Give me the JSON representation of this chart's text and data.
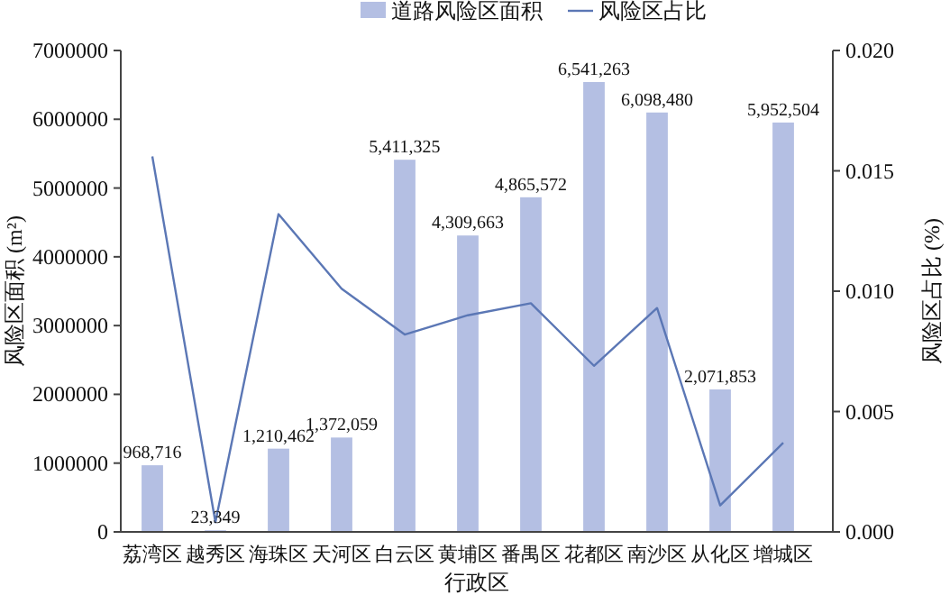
{
  "chart_data": {
    "type": "bar",
    "xlabel": "行政区",
    "ylabel": "风险区面积 (m²)",
    "y2label": "风险区占比 (%)",
    "categories": [
      "荔湾区",
      "越秀区",
      "海珠区",
      "天河区",
      "白云区",
      "黄埔区",
      "番禺区",
      "花都区",
      "南沙区",
      "从化区",
      "增城区"
    ],
    "series": [
      {
        "name": "道路风险区面积",
        "color": "#b4bfe3",
        "values": [
          968716,
          23349,
          1210462,
          1372059,
          5411325,
          4309663,
          4865572,
          6541263,
          6098480,
          2071853,
          5952504
        ],
        "value_labels": [
          "968,716",
          "23,349",
          "1,210,462",
          "1,372,059",
          "5,411,325",
          "4,309,663",
          "4,865,572",
          "6,541,263",
          "6,098,480",
          "2,071,853",
          "5,952,504"
        ]
      },
      {
        "name": "风险区占比",
        "type": "line",
        "axis": "y2",
        "color": "#5b77b5",
        "values": [
          0.0156,
          0.0004,
          0.0132,
          0.0101,
          0.0082,
          0.009,
          0.0095,
          0.0069,
          0.0093,
          0.0011,
          0.0037
        ]
      }
    ],
    "ylim": [
      0,
      7000000
    ],
    "yticks": [
      0,
      1000000,
      2000000,
      3000000,
      4000000,
      5000000,
      6000000,
      7000000
    ],
    "y2lim": [
      0,
      0.02
    ],
    "y2ticks": [
      {
        "value": 0,
        "label": "0.000"
      },
      {
        "value": 0.005,
        "label": "0.005"
      },
      {
        "value": 0.01,
        "label": "0.010"
      },
      {
        "value": 0.015,
        "label": "0.015"
      },
      {
        "value": 0.02,
        "label": "0.020"
      }
    ],
    "legend": "top",
    "grid": false,
    "marker": "none"
  }
}
